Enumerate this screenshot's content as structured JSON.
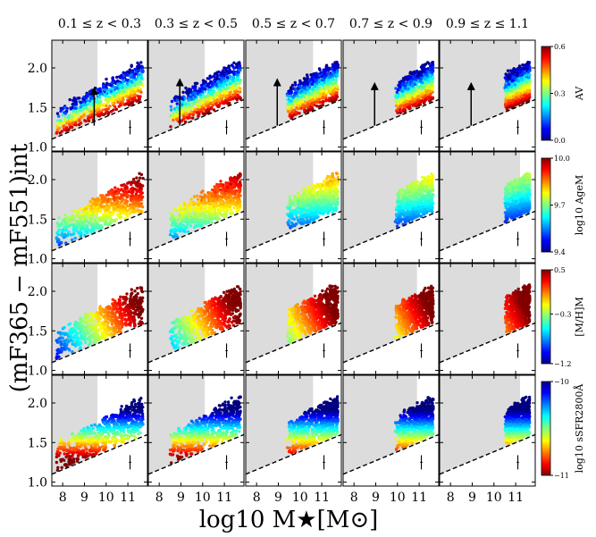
{
  "chart_data": {
    "type": "scatter",
    "title": "",
    "xlabel": "log10 M★[M⊙]",
    "ylabel": "(mF365 − mF551)int",
    "xlim": [
      7.5,
      11.9
    ],
    "ylim": [
      0.95,
      2.35
    ],
    "xticks": [
      8,
      9,
      10,
      11
    ],
    "xtick_labels": [
      "8",
      "9",
      "10",
      "11"
    ],
    "yticks": [
      1.0,
      1.5,
      2.0
    ],
    "ytick_labels": [
      "1.0",
      "1.5",
      "2.0"
    ],
    "redshift_bins": [
      {
        "label": "0.1 ≤ z < 0.3",
        "mass_limit": 9.6,
        "arrow": [
          9.45,
          1.27,
          1.71
        ],
        "x_min": 7.7,
        "x_max": 11.7
      },
      {
        "label": "0.3 ≤ z < 0.5",
        "mass_limit": 10.1,
        "arrow": [
          8.95,
          1.27,
          1.82
        ],
        "x_min": 8.5,
        "x_max": 11.75
      },
      {
        "label": "0.5 ≤ z < 0.7",
        "mass_limit": 10.6,
        "arrow": [
          8.95,
          1.27,
          1.82
        ],
        "x_min": 9.4,
        "x_max": 11.75
      },
      {
        "label": "0.7 ≤ z < 0.9",
        "mass_limit": 10.9,
        "arrow": [
          8.95,
          1.27,
          1.77
        ],
        "x_min": 9.9,
        "x_max": 11.65
      },
      {
        "label": "0.9 ≤ z ≤ 1.1",
        "mass_limit": 11.2,
        "arrow": [
          8.95,
          1.27,
          1.77
        ],
        "x_min": 10.5,
        "x_max": 11.65
      }
    ],
    "selection_line": {
      "style": "dashed",
      "points": [
        [
          7.5,
          1.1
        ],
        [
          11.9,
          1.6
        ]
      ]
    },
    "typical_error": {
      "x": 11.1,
      "y": 1.25,
      "yerr": 0.09,
      "xerr": 0.05
    },
    "rows": [
      {
        "property": "AV",
        "colorbar_label": "AV",
        "cmap": "jet",
        "range": [
          0.0,
          0.6
        ],
        "ticks": [
          0.0,
          0.3,
          0.6
        ],
        "tick_labels": [
          "0.0",
          "0.3",
          "0.6"
        ],
        "mapping": "color"
      },
      {
        "property": "log10 AgeM",
        "colorbar_label": "log10 AgeM",
        "cmap": "jet",
        "range": [
          9.4,
          10.0
        ],
        "ticks": [
          9.4,
          9.7,
          10.0
        ],
        "tick_labels": [
          "9.4",
          "9.7",
          "10.0"
        ],
        "mapping": "color_age"
      },
      {
        "property": "[M/H]M",
        "colorbar_label": "[M/H]M",
        "cmap": "jet",
        "range": [
          -1.2,
          0.5
        ],
        "ticks": [
          -1.2,
          -0.3,
          0.5
        ],
        "tick_labels": [
          "−1.2",
          "−0.3",
          "0.5"
        ],
        "mapping": "mass"
      },
      {
        "property": "log10 sSFR2800Å",
        "colorbar_label": "log10 sSFR2800Å",
        "cmap": "jet_r",
        "range": [
          -11,
          -10
        ],
        "ticks": [
          -11,
          -10
        ],
        "tick_labels": [
          "−11",
          "−10"
        ],
        "mapping": "ssfr"
      }
    ]
  }
}
